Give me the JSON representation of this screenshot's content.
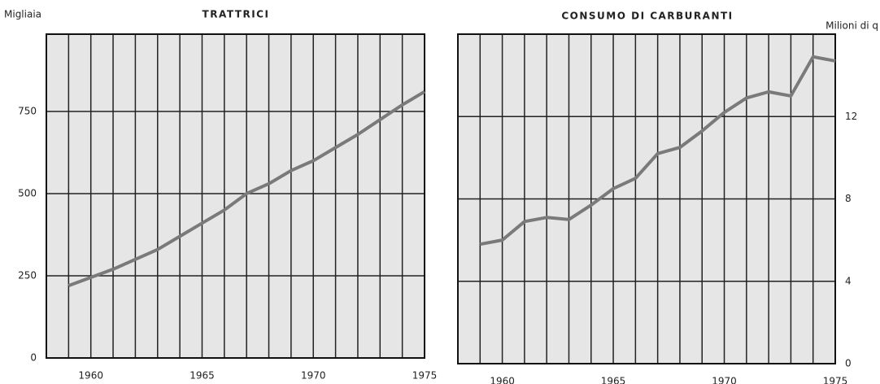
{
  "chart_data": [
    {
      "type": "line",
      "title": "TRATTRICI",
      "y_label": "Migliaia",
      "y_axis_side": "left",
      "x": [
        1959,
        1960,
        1961,
        1962,
        1963,
        1964,
        1965,
        1966,
        1967,
        1968,
        1969,
        1970,
        1971,
        1972,
        1973,
        1974,
        1975
      ],
      "series": [
        {
          "name": "Trattrici",
          "color": "#7a7a7a",
          "values": [
            220,
            245,
            270,
            300,
            330,
            370,
            410,
            450,
            500,
            530,
            570,
            600,
            640,
            680,
            725,
            770,
            810
          ]
        }
      ],
      "xlim": [
        1958,
        1975
      ],
      "xticks": [
        1960,
        1965,
        1970,
        1975
      ],
      "ylim": [
        0,
        985
      ],
      "yticks": [
        0,
        250,
        500,
        750
      ],
      "grid": true
    },
    {
      "type": "line",
      "title": "CONSUMO DI CARBURANTI",
      "y_label": "Milioni di q",
      "y_axis_side": "right",
      "x": [
        1959,
        1960,
        1961,
        1962,
        1963,
        1964,
        1965,
        1966,
        1967,
        1968,
        1969,
        1970,
        1971,
        1972,
        1973,
        1974,
        1975
      ],
      "series": [
        {
          "name": "Consumo di carburanti",
          "color": "#7a7a7a",
          "values": [
            5.8,
            6.0,
            6.9,
            7.1,
            7.0,
            7.7,
            8.5,
            9.0,
            10.2,
            10.5,
            11.3,
            12.2,
            12.9,
            13.2,
            13.0,
            14.9,
            14.7
          ]
        }
      ],
      "xlim": [
        1958,
        1975
      ],
      "xticks": [
        1960,
        1965,
        1970,
        1975
      ],
      "ylim": [
        0,
        16
      ],
      "yticks": [
        0,
        4,
        8,
        12
      ],
      "grid": true
    }
  ]
}
